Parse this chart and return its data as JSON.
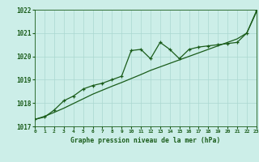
{
  "x": [
    0,
    1,
    2,
    3,
    4,
    5,
    6,
    7,
    8,
    9,
    10,
    11,
    12,
    13,
    14,
    15,
    16,
    17,
    18,
    19,
    20,
    21,
    22,
    23
  ],
  "y_main": [
    1017.3,
    1017.4,
    1017.7,
    1018.1,
    1018.3,
    1018.6,
    1018.75,
    1018.85,
    1019.0,
    1019.15,
    1020.25,
    1020.3,
    1019.9,
    1020.6,
    1020.3,
    1019.9,
    1020.3,
    1020.4,
    1020.45,
    1020.5,
    1020.55,
    1020.6,
    1021.0,
    1021.95
  ],
  "y_trend": [
    1017.3,
    1017.43,
    1017.6,
    1017.78,
    1017.98,
    1018.18,
    1018.38,
    1018.55,
    1018.72,
    1018.88,
    1019.05,
    1019.22,
    1019.4,
    1019.55,
    1019.7,
    1019.85,
    1020.0,
    1020.15,
    1020.3,
    1020.45,
    1020.6,
    1020.75,
    1021.0,
    1021.9
  ],
  "line_color": "#1a5c1a",
  "bg_color": "#cceee8",
  "grid_color": "#aad8d0",
  "text_color": "#1a5c1a",
  "xlabel": "Graphe pression niveau de la mer (hPa)",
  "ylim": [
    1017,
    1022
  ],
  "xlim": [
    0,
    23
  ],
  "yticks": [
    1017,
    1018,
    1019,
    1020,
    1021,
    1022
  ],
  "xticks": [
    0,
    1,
    2,
    3,
    4,
    5,
    6,
    7,
    8,
    9,
    10,
    11,
    12,
    13,
    14,
    15,
    16,
    17,
    18,
    19,
    20,
    21,
    22,
    23
  ]
}
